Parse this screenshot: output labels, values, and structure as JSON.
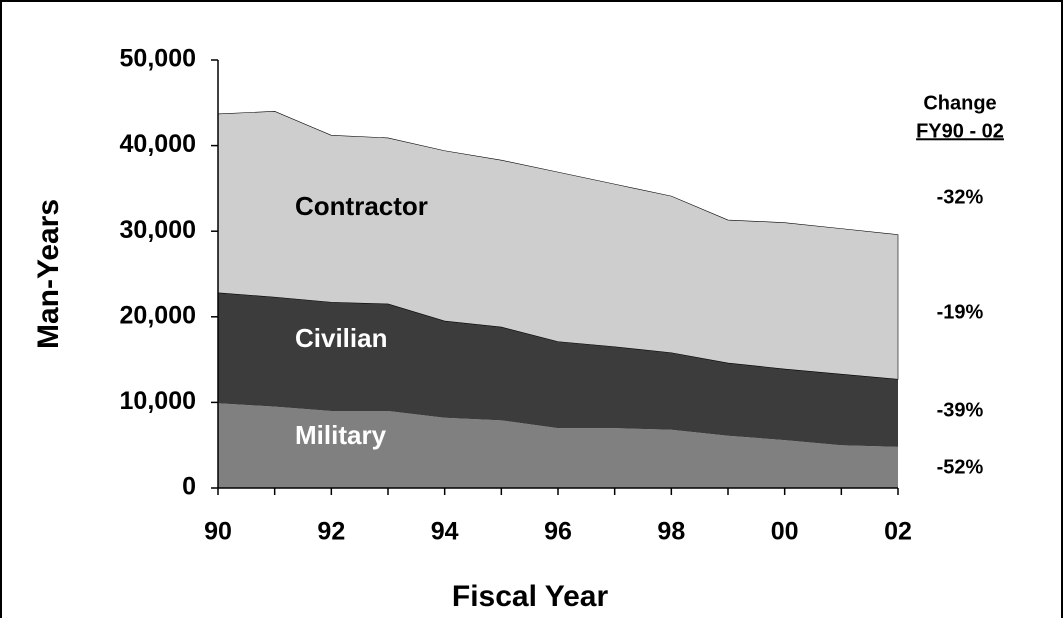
{
  "chart_data": {
    "type": "stacked_area",
    "x_label": "Fiscal Year",
    "y_label": "Man-Years",
    "categories": [
      "90",
      null,
      "92",
      null,
      "94",
      null,
      "96",
      null,
      "98",
      null,
      "00",
      null,
      "02"
    ],
    "series": [
      {
        "name": "Military",
        "color": "#808080",
        "values": [
          9900,
          9500,
          9000,
          9000,
          8200,
          7900,
          7000,
          7000,
          6800,
          6100,
          5600,
          5000,
          4800
        ]
      },
      {
        "name": "Civilian",
        "color": "#3c3c3c",
        "values": [
          12900,
          12800,
          12700,
          12500,
          11300,
          10900,
          10100,
          9500,
          9000,
          8500,
          8300,
          8300,
          7900
        ]
      },
      {
        "name": "Contractor",
        "color": "#cecece",
        "values": [
          20900,
          21700,
          19500,
          19400,
          19900,
          19500,
          19800,
          19000,
          18300,
          16700,
          17100,
          17000,
          16900
        ]
      }
    ],
    "ylim": [
      0,
      50000
    ],
    "yticks": [
      0,
      {
        "value": 10000,
        "label": "10,000"
      },
      {
        "value": 20000,
        "label": "20,000"
      },
      {
        "value": 30000,
        "label": "30,000"
      },
      {
        "value": 40000,
        "label": "40,000"
      },
      {
        "value": 50000,
        "label": "50,000"
      }
    ],
    "annotations": [
      "Change",
      "FY90 - 02",
      "-32%",
      "-19%",
      "-39%",
      "-52%"
    ]
  }
}
